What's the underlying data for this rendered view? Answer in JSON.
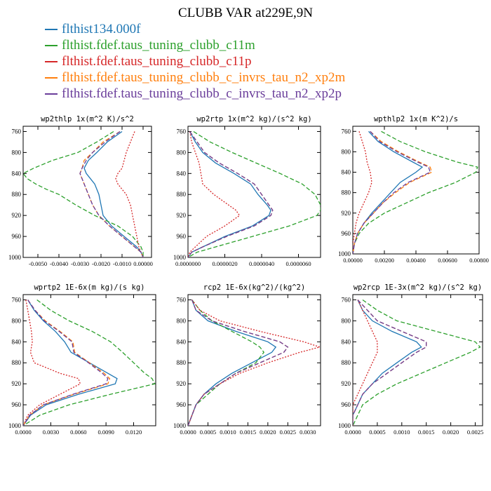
{
  "figure": {
    "title": "CLUBB VAR at229E,9N"
  },
  "legend": {
    "entries": [
      {
        "label": "flthist134.000f",
        "color": "#1f77b4"
      },
      {
        "label": "flthist.fdef.taus_tuning_clubb_c11m",
        "color": "#2ca02c"
      },
      {
        "label": "flthist.fdef.taus_tuning_clubb_c11p",
        "color": "#d62728"
      },
      {
        "label": "flthist.fdef.taus_tuning_clubb_c_invrs_tau_n2_xp2m",
        "color": "#ff7f0e"
      },
      {
        "label": "flthist.fdef.taus_tuning_clubb_c_invrs_tau_n2_xp2p",
        "color": "#6a3d9a"
      }
    ]
  },
  "chart_data": [
    {
      "type": "line",
      "title": "wp2thlp  1x(m^2 K)/s^2",
      "y_ticks": [
        "760",
        "800",
        "840",
        "880",
        "920",
        "960",
        "1000"
      ],
      "ylim": [
        1000,
        750
      ],
      "xlim": [
        -0.0057,
        0.0004
      ],
      "x_ticks": [
        -0.005,
        -0.004,
        -0.003,
        -0.002,
        -0.001,
        0.0
      ],
      "x_tick_labels": [
        "-0.0050",
        "-0.0040",
        "-0.0030",
        "-0.0020",
        "-0.0010",
        "0.00000"
      ],
      "y": [
        760,
        780,
        800,
        815,
        830,
        840,
        850,
        860,
        870,
        880,
        900,
        920,
        940,
        960,
        980,
        990,
        1000
      ],
      "series": [
        {
          "name": "flthist134.000f",
          "values": [
            -0.001,
            -0.0017,
            -0.0022,
            -0.0026,
            -0.0028,
            -0.0027,
            -0.0025,
            -0.0023,
            -0.0022,
            -0.0021,
            -0.002,
            -0.0019,
            -0.0015,
            -0.0009,
            -0.0003,
            -0.0001,
            0.0
          ]
        },
        {
          "name": "flthist.fdef.taus_tuning_clubb_c11m",
          "values": [
            -0.0014,
            -0.0022,
            -0.0031,
            -0.0043,
            -0.0052,
            -0.0057,
            -0.0055,
            -0.0051,
            -0.0046,
            -0.004,
            -0.0032,
            -0.0023,
            -0.0012,
            -0.0005,
            -0.0001,
            -0.0,
            0.0
          ]
        },
        {
          "name": "flthist.fdef.taus_tuning_clubb_c11p",
          "values": [
            -0.0004,
            -0.0006,
            -0.0008,
            -0.0009,
            -0.001,
            -0.0012,
            -0.0013,
            -0.0012,
            -0.001,
            -0.0008,
            -0.0006,
            -0.0005,
            -0.0004,
            -0.0003,
            -0.0002,
            -0.0001,
            0.0
          ]
        },
        {
          "name": "flthist.fdef.taus_tuning_clubb_c_invrs_tau_n2_xp2m",
          "values": [
            -0.0011,
            -0.0019,
            -0.0024,
            -0.0028,
            -0.0029,
            -0.003,
            -0.0029,
            -0.0028,
            -0.0027,
            -0.0026,
            -0.0024,
            -0.0021,
            -0.0016,
            -0.001,
            -0.0004,
            -0.0001,
            0.0
          ]
        },
        {
          "name": "flthist.fdef.taus_tuning_clubb_c_invrs_tau_n2_xp2p",
          "values": [
            -0.0011,
            -0.0018,
            -0.0024,
            -0.0027,
            -0.0029,
            -0.003,
            -0.0029,
            -0.0028,
            -0.0027,
            -0.0026,
            -0.0024,
            -0.0021,
            -0.0016,
            -0.001,
            -0.0004,
            -0.0001,
            0.0
          ]
        }
      ]
    },
    {
      "type": "line",
      "title": "wp2rtp  1x(m^2 kg)/(s^2 kg)",
      "y_ticks": [
        "760",
        "800",
        "840",
        "880",
        "920",
        "960",
        "1000"
      ],
      "ylim": [
        1000,
        750
      ],
      "xlim": [
        0,
        7.2e-06
      ],
      "x_ticks": [
        0,
        2e-06,
        4e-06,
        6e-06
      ],
      "x_tick_labels": [
        "0.0000000",
        "0.0000020",
        "0.0000040",
        "0.0000060"
      ],
      "y": [
        760,
        780,
        800,
        820,
        840,
        860,
        880,
        900,
        910,
        920,
        940,
        960,
        980,
        990,
        1000
      ],
      "series": [
        {
          "name": "flthist134.000f",
          "values": [
            1e-07,
            4e-07,
            8e-07,
            1.5e-06,
            2.5e-06,
            3.4e-06,
            3.8e-06,
            4.3e-06,
            4.5e-06,
            4.4e-06,
            3.5e-06,
            2e-06,
            8e-07,
            2e-07,
            0.0
          ]
        },
        {
          "name": "flthist.fdef.taus_tuning_clubb_c11m",
          "values": [
            3e-07,
            1.2e-06,
            2.4e-06,
            3.7e-06,
            5e-06,
            6.2e-06,
            6.9e-06,
            7.2e-06,
            7.2e-06,
            7e-06,
            5.5e-06,
            3.5e-06,
            1.5e-06,
            5e-07,
            0.0
          ]
        },
        {
          "name": "flthist.fdef.taus_tuning_clubb_c11p",
          "values": [
            1e-07,
            2e-07,
            4e-07,
            6e-07,
            7e-07,
            8e-07,
            1.4e-06,
            2.2e-06,
            2.6e-06,
            2.8e-06,
            2e-06,
            1e-06,
            4e-07,
            1e-07,
            0.0
          ]
        },
        {
          "name": "flthist.fdef.taus_tuning_clubb_c_invrs_tau_n2_xp2m",
          "values": [
            1e-07,
            5e-07,
            9e-07,
            1.7e-06,
            2.7e-06,
            3.6e-06,
            4e-06,
            4.4e-06,
            4.6e-06,
            4.5e-06,
            3.6e-06,
            2.1e-06,
            8e-07,
            2e-07,
            0.0
          ]
        },
        {
          "name": "flthist.fdef.taus_tuning_clubb_c_invrs_tau_n2_xp2p",
          "values": [
            1e-07,
            5e-07,
            9e-07,
            1.7e-06,
            2.7e-06,
            3.6e-06,
            4e-06,
            4.4e-06,
            4.6e-06,
            4.5e-06,
            3.6e-06,
            2.1e-06,
            8e-07,
            2e-07,
            0.0
          ]
        }
      ]
    },
    {
      "type": "line",
      "title": "wpthlp2  1x(m K^2)/s",
      "y_ticks": [
        "760",
        "800",
        "840",
        "880",
        "920",
        "960",
        "1000"
      ],
      "ylim": [
        1000,
        750
      ],
      "xlim": [
        0,
        0.008
      ],
      "x_ticks": [
        0,
        0.002,
        0.004,
        0.006,
        0.008
      ],
      "x_tick_labels": [
        "0.00000",
        "0.00200",
        "0.00400",
        "0.00600",
        "0.00800"
      ],
      "y": [
        760,
        780,
        800,
        820,
        830,
        840,
        860,
        880,
        900,
        920,
        940,
        960,
        980,
        1000
      ],
      "series": [
        {
          "name": "flthist134.000f",
          "values": [
            0.001,
            0.0016,
            0.0026,
            0.0038,
            0.0044,
            0.004,
            0.003,
            0.0024,
            0.0018,
            0.0012,
            0.0007,
            0.0003,
            0.0001,
            0.0
          ]
        },
        {
          "name": "flthist.fdef.taus_tuning_clubb_c11m",
          "values": [
            0.0018,
            0.003,
            0.0046,
            0.0066,
            0.0079,
            0.0078,
            0.0065,
            0.0048,
            0.0034,
            0.002,
            0.001,
            0.0004,
            0.0001,
            0.0
          ]
        },
        {
          "name": "flthist.fdef.taus_tuning_clubb_c11p",
          "values": [
            0.0004,
            0.0006,
            0.0008,
            0.0009,
            0.001,
            0.0011,
            0.0012,
            0.001,
            0.0007,
            0.0004,
            0.0002,
            0.0001,
            0.0,
            0.0
          ]
        },
        {
          "name": "flthist.fdef.taus_tuning_clubb_c_invrs_tau_n2_xp2m",
          "values": [
            0.0011,
            0.0018,
            0.0029,
            0.0042,
            0.0049,
            0.005,
            0.0036,
            0.0027,
            0.0019,
            0.0013,
            0.0007,
            0.0003,
            0.0001,
            0.0
          ]
        },
        {
          "name": "flthist.fdef.taus_tuning_clubb_c_invrs_tau_n2_xp2p",
          "values": [
            0.0011,
            0.0017,
            0.0028,
            0.0041,
            0.0048,
            0.0049,
            0.0035,
            0.0026,
            0.0019,
            0.0013,
            0.0007,
            0.0003,
            0.0001,
            0.0
          ]
        }
      ]
    },
    {
      "type": "line",
      "title": "wprtp2  1E-6x(m kg)/(s kg)",
      "y_ticks": [
        "760",
        "800",
        "840",
        "880",
        "920",
        "960",
        "1000"
      ],
      "ylim": [
        1000,
        750
      ],
      "xlim": [
        0,
        0.0144
      ],
      "x_ticks": [
        0,
        0.003,
        0.006,
        0.009,
        0.012
      ],
      "x_tick_labels": [
        "0.0000",
        "0.0030",
        "0.0060",
        "0.0090",
        "0.0120"
      ],
      "y": [
        760,
        780,
        800,
        820,
        840,
        860,
        880,
        900,
        910,
        920,
        940,
        960,
        980,
        1000
      ],
      "series": [
        {
          "name": "flthist134.000f",
          "values": [
            0.0005,
            0.0012,
            0.0022,
            0.0035,
            0.0045,
            0.0052,
            0.0072,
            0.0092,
            0.0102,
            0.01,
            0.006,
            0.0025,
            0.0008,
            0.0
          ]
        },
        {
          "name": "flthist.fdef.taus_tuning_clubb_c11m",
          "values": [
            0.0015,
            0.003,
            0.005,
            0.0075,
            0.0095,
            0.0108,
            0.012,
            0.0132,
            0.014,
            0.0143,
            0.0095,
            0.005,
            0.0018,
            0.0
          ]
        },
        {
          "name": "flthist.fdef.taus_tuning_clubb_c11p",
          "values": [
            0.0003,
            0.0005,
            0.0007,
            0.0009,
            0.001,
            0.0008,
            0.0012,
            0.004,
            0.006,
            0.0062,
            0.004,
            0.0018,
            0.0005,
            0.0
          ]
        },
        {
          "name": "flthist.fdef.taus_tuning_clubb_c_invrs_tau_n2_xp2m",
          "values": [
            0.0005,
            0.0013,
            0.0024,
            0.004,
            0.0054,
            0.0056,
            0.0072,
            0.0088,
            0.0094,
            0.0092,
            0.0055,
            0.0022,
            0.0007,
            0.0
          ]
        },
        {
          "name": "flthist.fdef.taus_tuning_clubb_c_invrs_tau_n2_xp2p",
          "values": [
            0.0005,
            0.0013,
            0.0023,
            0.0039,
            0.0053,
            0.0055,
            0.0071,
            0.0086,
            0.0092,
            0.009,
            0.0054,
            0.0022,
            0.0007,
            0.0
          ]
        }
      ]
    },
    {
      "type": "line",
      "title": "rcp2  1E-6x(kg^2)/(kg^2)",
      "y_ticks": [
        "760",
        "800",
        "840",
        "880",
        "920",
        "960",
        "1000"
      ],
      "ylim": [
        1000,
        750
      ],
      "xlim": [
        0,
        0.00332
      ],
      "x_ticks": [
        0,
        0.0005,
        0.001,
        0.0015,
        0.002,
        0.0025,
        0.003
      ],
      "x_tick_labels": [
        "0.0000",
        "0.0005",
        "0.0010",
        "0.0015",
        "0.0020",
        "0.0025",
        "0.0030"
      ],
      "y": [
        760,
        780,
        800,
        820,
        840,
        850,
        860,
        880,
        900,
        920,
        940,
        960,
        980,
        1000
      ],
      "series": [
        {
          "name": "flthist134.000f",
          "values": [
            0.0001,
            0.0002,
            0.0005,
            0.0012,
            0.002,
            0.0022,
            0.0021,
            0.0016,
            0.0011,
            0.0007,
            0.0004,
            0.0002,
            0.0001,
            0.0
          ]
        },
        {
          "name": "flthist.fdef.taus_tuning_clubb_c11m",
          "values": [
            0.0001,
            0.0003,
            0.0006,
            0.0011,
            0.0016,
            0.0018,
            0.0019,
            0.0017,
            0.0012,
            0.0008,
            0.0005,
            0.0002,
            0.0001,
            0.0
          ]
        },
        {
          "name": "flthist.fdef.taus_tuning_clubb_c11p",
          "values": [
            0.0001,
            0.0003,
            0.0008,
            0.0018,
            0.0029,
            0.0033,
            0.0028,
            0.002,
            0.0013,
            0.0008,
            0.0004,
            0.0002,
            0.0001,
            0.0
          ]
        },
        {
          "name": "flthist.fdef.taus_tuning_clubb_c_invrs_tau_n2_xp2m",
          "values": [
            0.0001,
            0.0002,
            0.0006,
            0.0014,
            0.0023,
            0.0025,
            0.0024,
            0.0018,
            0.0012,
            0.0008,
            0.0004,
            0.0002,
            0.0001,
            0.0
          ]
        },
        {
          "name": "flthist.fdef.taus_tuning_clubb_c_invrs_tau_n2_xp2p",
          "values": [
            0.0001,
            0.0002,
            0.0006,
            0.0014,
            0.0023,
            0.0025,
            0.0024,
            0.0018,
            0.0012,
            0.0008,
            0.0004,
            0.0002,
            0.0001,
            0.0
          ]
        }
      ]
    },
    {
      "type": "line",
      "title": "wp2rcp  1E-3x(m^2 kg)/(s^2 kg)",
      "y_ticks": [
        "760",
        "800",
        "840",
        "880",
        "920",
        "960",
        "1000"
      ],
      "ylim": [
        1000,
        750
      ],
      "xlim": [
        0,
        0.00265
      ],
      "x_ticks": [
        0,
        0.0005,
        0.001,
        0.0015,
        0.002,
        0.0025
      ],
      "x_tick_labels": [
        "0.0000",
        "0.0005",
        "0.0010",
        "0.0015",
        "0.0020",
        "0.0025"
      ],
      "y": [
        760,
        780,
        800,
        820,
        840,
        850,
        860,
        880,
        900,
        920,
        940,
        960,
        980,
        1000
      ],
      "series": [
        {
          "name": "flthist134.000f",
          "values": [
            0.0001,
            0.0002,
            0.0004,
            0.0008,
            0.0013,
            0.0014,
            0.0012,
            0.0009,
            0.0006,
            0.0004,
            0.0002,
            0.0001,
            0.0,
            0.0
          ]
        },
        {
          "name": "flthist.fdef.taus_tuning_clubb_c11m",
          "values": [
            0.0002,
            0.0005,
            0.0009,
            0.0017,
            0.0025,
            0.0026,
            0.0024,
            0.0019,
            0.0014,
            0.0009,
            0.0005,
            0.0002,
            0.0001,
            0.0
          ]
        },
        {
          "name": "flthist.fdef.taus_tuning_clubb_c11p",
          "values": [
            0.0001,
            0.0002,
            0.0003,
            0.0004,
            0.0005,
            0.0005,
            0.0005,
            0.0004,
            0.0003,
            0.0002,
            0.0001,
            0.0,
            0.0,
            0.0
          ]
        },
        {
          "name": "flthist.fdef.taus_tuning_clubb_c_invrs_tau_n2_xp2m",
          "values": [
            0.0001,
            0.0003,
            0.0005,
            0.001,
            0.0015,
            0.0015,
            0.0013,
            0.001,
            0.0007,
            0.0004,
            0.0002,
            0.0001,
            0.0,
            0.0
          ]
        },
        {
          "name": "flthist.fdef.taus_tuning_clubb_c_invrs_tau_n2_xp2p",
          "values": [
            0.0001,
            0.0003,
            0.0005,
            0.001,
            0.0015,
            0.0015,
            0.0013,
            0.001,
            0.0007,
            0.0004,
            0.0002,
            0.0001,
            0.0,
            0.0
          ]
        }
      ]
    }
  ]
}
